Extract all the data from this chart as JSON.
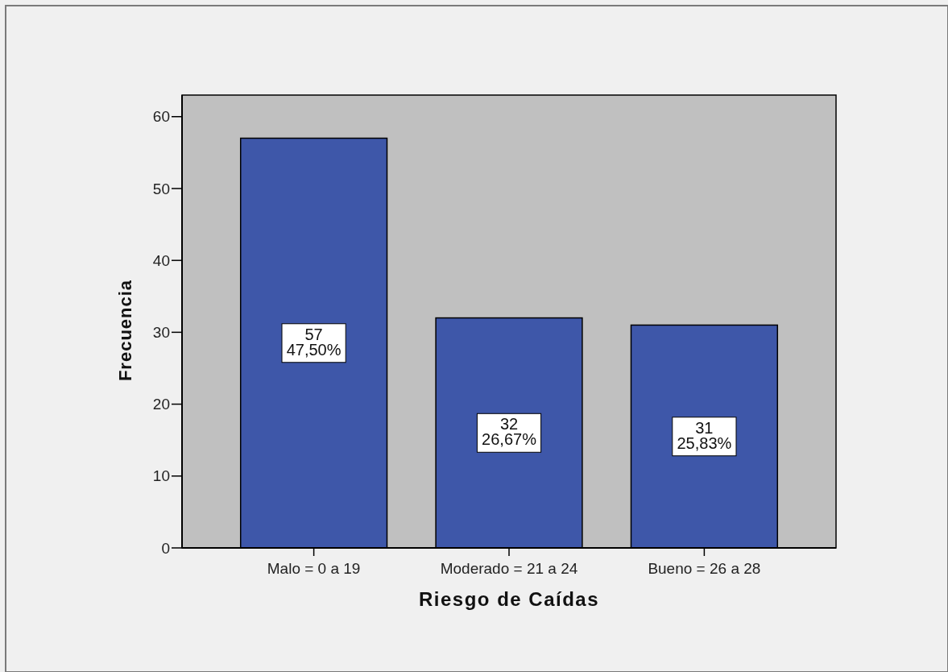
{
  "chart_data": {
    "type": "bar",
    "xlabel": "Riesgo de Caídas",
    "ylabel": "Frecuencia",
    "categories": [
      "Malo = 0 a 19",
      "Moderado = 21 a 24",
      "Bueno = 26 a 28"
    ],
    "values": [
      57,
      32,
      31
    ],
    "color": "#3e57a9",
    "value_labels": [
      "57\n47,50%",
      "32\n26,67%",
      "31\n25,83%"
    ],
    "ylim": [
      0,
      63
    ],
    "yticks": [
      0,
      10,
      20,
      30,
      40,
      50,
      60
    ]
  }
}
